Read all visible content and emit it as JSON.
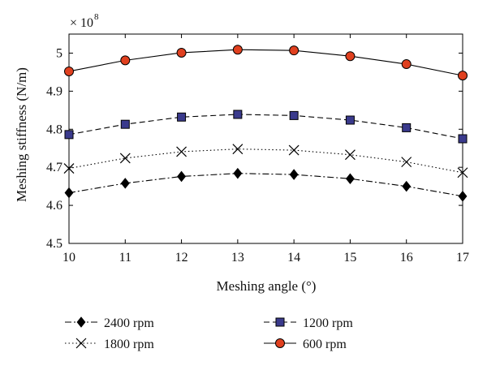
{
  "chart_data": {
    "type": "line",
    "title": "",
    "xlabel": "Meshing angle (°)",
    "ylabel": "Meshing stiffness (N/m)",
    "y_multiplier": "× 10",
    "y_multiplier_exp": "8",
    "xlim": [
      10,
      17
    ],
    "ylim": [
      4.5,
      5.05
    ],
    "x": [
      10,
      11,
      12,
      13,
      14,
      15,
      16,
      17
    ],
    "xticks": [
      "10",
      "11",
      "12",
      "13",
      "14",
      "15",
      "16",
      "17"
    ],
    "yticks": [
      {
        "value": 4.5,
        "label": "4.5"
      },
      {
        "value": 4.6,
        "label": "4.6"
      },
      {
        "value": 4.7,
        "label": "4.7"
      },
      {
        "value": 4.8,
        "label": "4.8"
      },
      {
        "value": 4.9,
        "label": "4.9"
      },
      {
        "value": 5.0,
        "label": "5"
      }
    ],
    "grid": false,
    "legend_position": "bottom",
    "series": [
      {
        "name": "2400 rpm",
        "marker": "diamond",
        "line": "dashdot",
        "color": "#000000",
        "values": [
          4.633,
          4.658,
          4.676,
          4.684,
          4.681,
          4.67,
          4.65,
          4.624
        ]
      },
      {
        "name": "1800 rpm",
        "marker": "x",
        "line": "dotted",
        "color": "#000000",
        "values": [
          4.697,
          4.724,
          4.741,
          4.748,
          4.745,
          4.733,
          4.714,
          4.686
        ]
      },
      {
        "name": "1200 rpm",
        "marker": "square",
        "line": "dashed",
        "color": "#000000",
        "fill": "#3a3a8c",
        "values": [
          4.786,
          4.813,
          4.832,
          4.839,
          4.836,
          4.824,
          4.804,
          4.775
        ]
      },
      {
        "name": "600 rpm",
        "marker": "circle",
        "line": "solid",
        "color": "#000000",
        "fill": "#e0401f",
        "values": [
          4.952,
          4.981,
          5.001,
          5.009,
          5.007,
          4.992,
          4.971,
          4.941
        ]
      }
    ],
    "legend_order": [
      "2400 rpm",
      "1200 rpm",
      "1800 rpm",
      "600 rpm"
    ]
  }
}
